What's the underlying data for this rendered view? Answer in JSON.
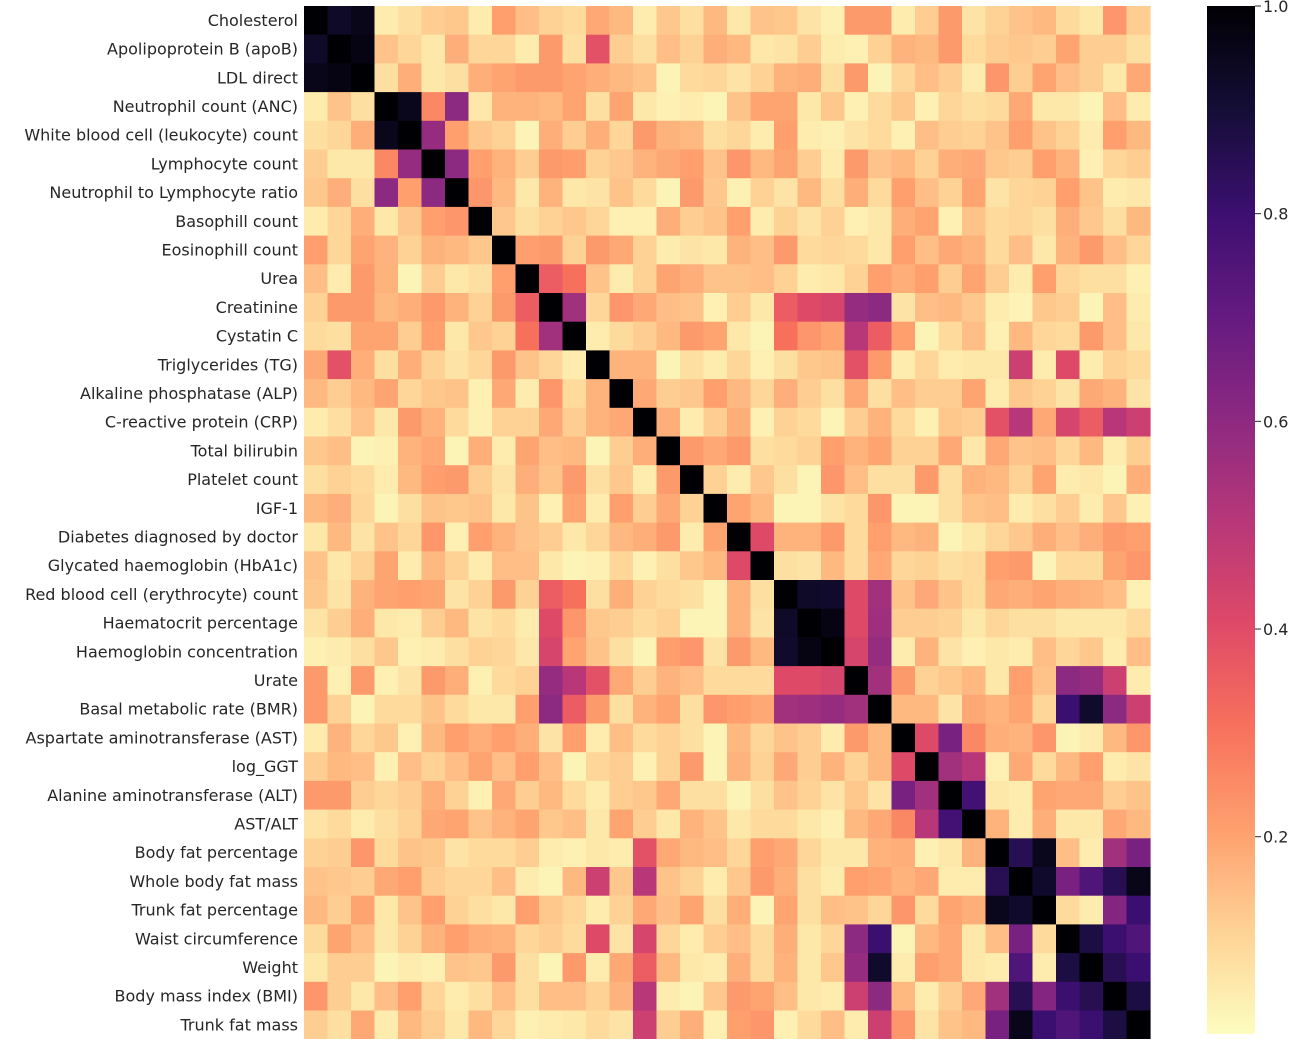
{
  "chart_data": {
    "type": "heatmap",
    "title": "",
    "xlabel": "",
    "ylabel": "",
    "x_tick_labels_visible": false,
    "colormap": "magma_r",
    "vmin": 0,
    "vmax": 1,
    "colorbar": {
      "position": "right",
      "ticks": [
        0.2,
        0.4,
        0.6,
        0.8,
        1.0
      ],
      "tick_labels": [
        "0.2",
        "0.4",
        "0.6",
        "0.8",
        "1.0"
      ]
    },
    "labels": [
      "Cholesterol",
      "Apolipoprotein B (apoB)",
      "LDL direct",
      "Neutrophil count (ANC)",
      "White blood cell (leukocyte) count",
      "Lymphocyte count",
      "Neutrophil to Lymphocyte ratio",
      "Basophill count",
      "Eosinophill count",
      "Urea",
      "Creatinine",
      "Cystatin C",
      "Triglycerides (TG)",
      "Alkaline phosphatase (ALP)",
      "C-reactive protein (CRP)",
      "Total bilirubin",
      "Platelet count",
      "IGF-1",
      "Diabetes diagnosed by doctor",
      "Glycated haemoglobin (HbA1c)",
      "Red blood cell (erythrocyte) count",
      "Haematocrit percentage",
      "Haemoglobin concentration",
      "Urate",
      "Basal metabolic rate (BMR)",
      "Aspartate aminotransferase (AST)",
      "log_GGT",
      "Alanine aminotransferase (ALT)",
      "AST/ALT",
      "Body fat percentage",
      "Whole body fat mass",
      "Trunk fat percentage",
      "Waist circumference",
      "Weight",
      "Body mass index (BMI)",
      "Trunk fat mass"
    ],
    "strong_pairs": [
      [
        0,
        1,
        0.93
      ],
      [
        0,
        2,
        0.96
      ],
      [
        1,
        2,
        0.97
      ],
      [
        3,
        4,
        0.95
      ],
      [
        3,
        5,
        0.25
      ],
      [
        3,
        6,
        0.6
      ],
      [
        4,
        5,
        0.58
      ],
      [
        4,
        6,
        0.2
      ],
      [
        5,
        6,
        0.6
      ],
      [
        9,
        10,
        0.35
      ],
      [
        9,
        11,
        0.3
      ],
      [
        10,
        11,
        0.55
      ],
      [
        10,
        20,
        0.35
      ],
      [
        10,
        21,
        0.4
      ],
      [
        10,
        22,
        0.42
      ],
      [
        10,
        23,
        0.58
      ],
      [
        10,
        24,
        0.6
      ],
      [
        11,
        20,
        0.3
      ],
      [
        11,
        23,
        0.5
      ],
      [
        11,
        24,
        0.35
      ],
      [
        12,
        1,
        0.38
      ],
      [
        12,
        23,
        0.38
      ],
      [
        12,
        32,
        0.4
      ],
      [
        12,
        30,
        0.45
      ],
      [
        14,
        29,
        0.38
      ],
      [
        14,
        30,
        0.5
      ],
      [
        14,
        32,
        0.42
      ],
      [
        14,
        33,
        0.35
      ],
      [
        14,
        34,
        0.5
      ],
      [
        14,
        35,
        0.45
      ],
      [
        18,
        19,
        0.4
      ],
      [
        20,
        21,
        0.93
      ],
      [
        20,
        22,
        0.92
      ],
      [
        21,
        22,
        0.97
      ],
      [
        20,
        23,
        0.4
      ],
      [
        21,
        23,
        0.4
      ],
      [
        22,
        23,
        0.42
      ],
      [
        20,
        24,
        0.55
      ],
      [
        21,
        24,
        0.56
      ],
      [
        22,
        24,
        0.58
      ],
      [
        23,
        24,
        0.55
      ],
      [
        23,
        32,
        0.6
      ],
      [
        23,
        33,
        0.58
      ],
      [
        23,
        34,
        0.45
      ],
      [
        24,
        32,
        0.75
      ],
      [
        24,
        33,
        0.88
      ],
      [
        24,
        34,
        0.6
      ],
      [
        24,
        35,
        0.45
      ],
      [
        32,
        24,
        0.8
      ],
      [
        33,
        24,
        0.92
      ],
      [
        25,
        26,
        0.4
      ],
      [
        25,
        27,
        0.65
      ],
      [
        25,
        28,
        0.25
      ],
      [
        26,
        27,
        0.55
      ],
      [
        26,
        28,
        0.5
      ],
      [
        27,
        28,
        0.78
      ],
      [
        29,
        30,
        0.85
      ],
      [
        29,
        31,
        0.95
      ],
      [
        30,
        31,
        0.92
      ],
      [
        29,
        34,
        0.55
      ],
      [
        29,
        35,
        0.65
      ],
      [
        30,
        32,
        0.65
      ],
      [
        30,
        33,
        0.75
      ],
      [
        30,
        34,
        0.85
      ],
      [
        30,
        35,
        0.96
      ],
      [
        31,
        34,
        0.62
      ],
      [
        31,
        35,
        0.8
      ],
      [
        32,
        33,
        0.88
      ],
      [
        32,
        34,
        0.8
      ],
      [
        32,
        35,
        0.75
      ],
      [
        33,
        34,
        0.85
      ],
      [
        33,
        35,
        0.8
      ],
      [
        34,
        35,
        0.88
      ]
    ]
  }
}
